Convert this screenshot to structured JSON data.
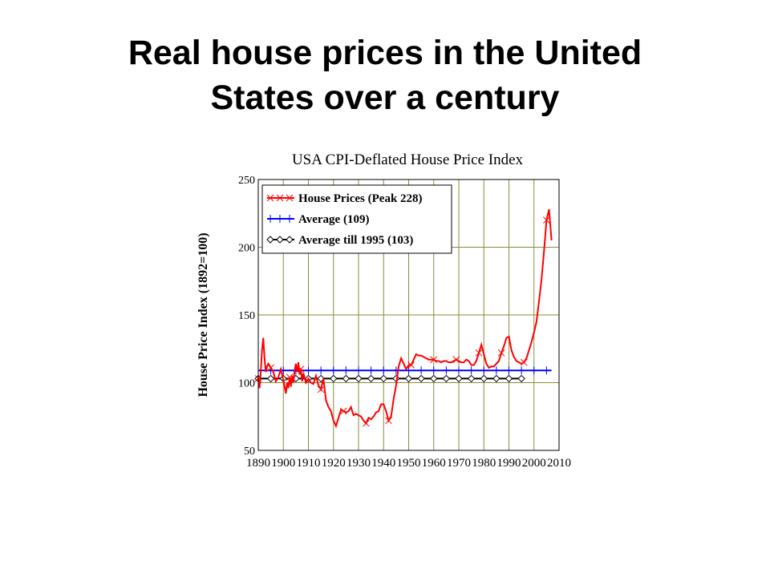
{
  "slide": {
    "title_line1": "Real house prices in the United",
    "title_line2": "States over a century"
  },
  "chart_data": {
    "type": "line",
    "title": "USA CPI-Deflated House Price Index",
    "xlabel": "",
    "ylabel": "House Price Index (1892=100)",
    "xlim": [
      1890,
      2010
    ],
    "ylim": [
      50,
      250
    ],
    "x_ticks": [
      1890,
      1900,
      1910,
      1920,
      1930,
      1940,
      1950,
      1960,
      1970,
      1980,
      1990,
      2000,
      2010
    ],
    "y_ticks": [
      50,
      100,
      150,
      200,
      250
    ],
    "x_tick_labels": [
      "1890",
      "1900",
      "1910",
      "1920",
      "1930",
      "1940",
      "1950",
      "1960",
      "1970",
      "1980",
      "1990",
      "2000",
      "2010"
    ],
    "y_tick_labels": [
      "50",
      "100",
      "150",
      "200",
      "250"
    ],
    "grid": true,
    "grid_color": "#8b8b3a",
    "legend_position": "top-left",
    "series": [
      {
        "name": "House Prices (Peak 228)",
        "color": "#ff0000",
        "marker": "x",
        "x": [
          1890,
          1890.5,
          1891,
          1891.5,
          1892,
          1892.5,
          1893,
          1893.5,
          1894,
          1895,
          1896,
          1897,
          1898,
          1899,
          1900,
          1901,
          1901.5,
          1902,
          1902.5,
          1903,
          1903.5,
          1904,
          1904.5,
          1905,
          1905.5,
          1906,
          1906.5,
          1907,
          1907.5,
          1908,
          1909,
          1910,
          1911,
          1912,
          1913,
          1914,
          1915,
          1916,
          1917,
          1918,
          1919,
          1920,
          1921,
          1922,
          1923,
          1924,
          1925,
          1926,
          1927,
          1928,
          1929,
          1930,
          1931,
          1932,
          1933,
          1934,
          1935,
          1936,
          1937,
          1938,
          1939,
          1940,
          1941,
          1942,
          1943,
          1944,
          1945,
          1946,
          1947,
          1948,
          1949,
          1950,
          1951,
          1952,
          1953,
          1954,
          1955,
          1956,
          1957,
          1958,
          1959,
          1960,
          1961,
          1962,
          1963,
          1964,
          1965,
          1966,
          1967,
          1968,
          1969,
          1970,
          1971,
          1972,
          1973,
          1974,
          1975,
          1976,
          1977,
          1978,
          1979,
          1980,
          1981,
          1982,
          1983,
          1984,
          1985,
          1986,
          1987,
          1988,
          1989,
          1990,
          1991,
          1992,
          1993,
          1994,
          1995,
          1996,
          1997,
          1998,
          1999,
          2000,
          2001,
          2002,
          2003,
          2004,
          2005,
          2006,
          2007
        ],
        "y": [
          103,
          96,
          108,
          124,
          133,
          118,
          108,
          112,
          114,
          111,
          108,
          101,
          104,
          110,
          102,
          92,
          100,
          96,
          104,
          97,
          105,
          100,
          109,
          114,
          108,
          115,
          106,
          110,
          101,
          107,
          100,
          103,
          100,
          99,
          105,
          98,
          95,
          103,
          87,
          82,
          79,
          72,
          68,
          74,
          80,
          79,
          78,
          79,
          82,
          76,
          77,
          76,
          75,
          72,
          70,
          74,
          73,
          75,
          78,
          79,
          84,
          84,
          79,
          72,
          75,
          88,
          98,
          112,
          118,
          114,
          110,
          113,
          113,
          117,
          121,
          120,
          120,
          119,
          118,
          117,
          117,
          117,
          116,
          116,
          115,
          116,
          116,
          115,
          115,
          116,
          117,
          116,
          115,
          115,
          117,
          116,
          113,
          113,
          116,
          122,
          128,
          121,
          114,
          111,
          112,
          112,
          114,
          116,
          122,
          127,
          133,
          134,
          124,
          119,
          116,
          115,
          114,
          115,
          118,
          124,
          130,
          137,
          145,
          160,
          176,
          197,
          220,
          228,
          205
        ]
      },
      {
        "name": "Average (109)",
        "color": "#0000ff",
        "marker": "+",
        "x": [
          1890,
          2007
        ],
        "y": [
          109,
          109
        ]
      },
      {
        "name": "Average till 1995 (103)",
        "color": "#000000",
        "marker": "diamond",
        "x": [
          1890,
          1995
        ],
        "y": [
          103,
          103
        ]
      }
    ]
  }
}
